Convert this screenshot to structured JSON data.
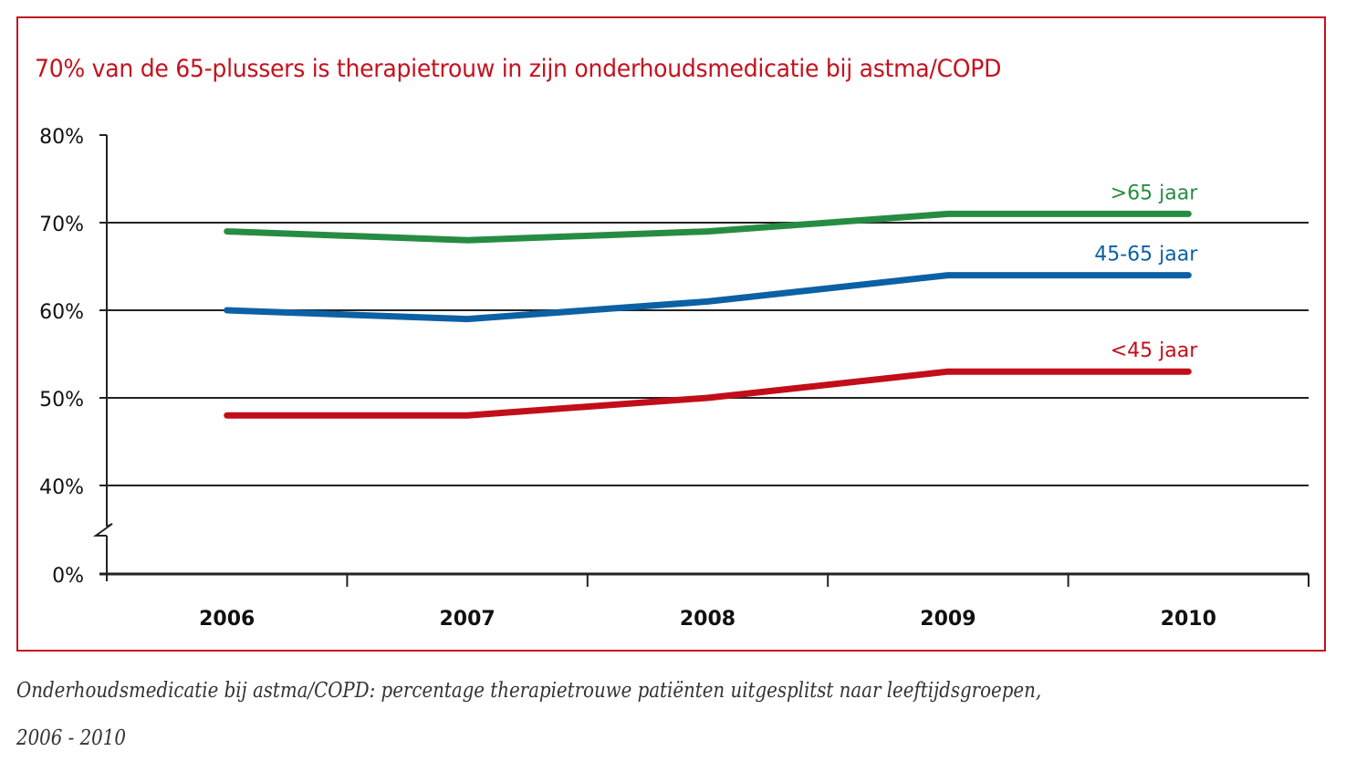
{
  "chart_data": {
    "type": "line",
    "title": "70% van de 65-plussers is therapietrouw in zijn onderhoudsmedicatie bij astma/COPD",
    "xlabel": "",
    "ylabel": "",
    "categories": [
      "2006",
      "2007",
      "2008",
      "2009",
      "2010"
    ],
    "yticks": [
      "0%",
      "40%",
      "50%",
      "60%",
      "70%",
      "80%"
    ],
    "ytick_values": [
      0,
      40,
      50,
      60,
      70,
      80
    ],
    "ylim": [
      0,
      80
    ],
    "axis_break": "between 0% and 40%",
    "grid": true,
    "series": [
      {
        "name": ">65 jaar",
        "color": "#278c43",
        "values": [
          69,
          68,
          69,
          71,
          71
        ]
      },
      {
        "name": "45-65 jaar",
        "color": "#0b61a4",
        "values": [
          60,
          59,
          61,
          64,
          64
        ]
      },
      {
        "name": "<45 jaar",
        "color": "#c20e1a",
        "values": [
          48,
          48,
          50,
          53,
          53
        ]
      }
    ],
    "legend": "inline labels at line ends (right)"
  },
  "caption": {
    "line1": "Onderhoudsmedicatie bij astma/COPD: percentage therapietrouwe patiënten uitgesplitst naar leeftijdsgroepen,",
    "line2": "2006 - 2010"
  },
  "colors": {
    "frame": "#c4121f",
    "title": "#c4121f",
    "axis": "#222222"
  }
}
